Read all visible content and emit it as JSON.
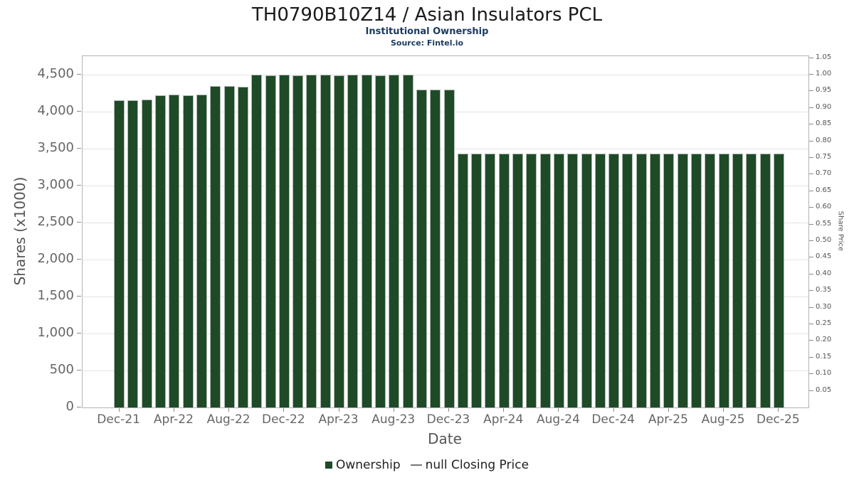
{
  "header": {
    "title": "TH0790B10Z14 / Asian Insulators PCL",
    "subtitle": "Institutional Ownership",
    "source": "Source: Fintel.io"
  },
  "chart_data": {
    "type": "bar",
    "title": "TH0790B10Z14 / Asian Insulators PCL",
    "subtitle": "Institutional Ownership",
    "source": "Source: Fintel.io",
    "xlabel": "Date",
    "ylabel_left": "Shares (x1000)",
    "ylabel_right": "Share Price",
    "bar_color": "#1f4a28",
    "grid": true,
    "legend_position": "bottom-center",
    "ylim_left": [
      0,
      4750
    ],
    "ylim_right": [
      0,
      1.0556
    ],
    "x_tick_step": 4,
    "x_tick_labels": [
      "Dec-21",
      "Apr-22",
      "Aug-22",
      "Dec-22",
      "Apr-23",
      "Aug-23",
      "Dec-23",
      "Apr-24",
      "Aug-24",
      "Dec-24",
      "Apr-25",
      "Aug-25",
      "Dec-25"
    ],
    "left_ticks": [
      {
        "value": 0,
        "label": "0"
      },
      {
        "value": 500,
        "label": "500"
      },
      {
        "value": 1000,
        "label": "1,000"
      },
      {
        "value": 1500,
        "label": "1,500"
      },
      {
        "value": 2000,
        "label": "2,000"
      },
      {
        "value": 2500,
        "label": "2,500"
      },
      {
        "value": 3000,
        "label": "3,000"
      },
      {
        "value": 3500,
        "label": "3,500"
      },
      {
        "value": 4000,
        "label": "4,000"
      },
      {
        "value": 4500,
        "label": "4,500"
      }
    ],
    "right_ticks": [
      "1.05",
      "1.00",
      "0.95",
      "0.90",
      "0.85",
      "0.80",
      "0.75",
      "0.70",
      "0.65",
      "0.60",
      "0.55",
      "0.50",
      "0.45",
      "0.40",
      "0.35",
      "0.30",
      "0.25",
      "0.20",
      "0.15",
      "0.10",
      "0.05"
    ],
    "x": [
      "Dec-21",
      "Jan-22",
      "Feb-22",
      "Mar-22",
      "Apr-22",
      "May-22",
      "Jun-22",
      "Jul-22",
      "Aug-22",
      "Sep-22",
      "Oct-22",
      "Nov-22",
      "Dec-22",
      "Jan-23",
      "Feb-23",
      "Mar-23",
      "Apr-23",
      "May-23",
      "Jun-23",
      "Jul-23",
      "Aug-23",
      "Sep-23",
      "Oct-23",
      "Nov-23",
      "Dec-23",
      "Jan-24",
      "Feb-24",
      "Mar-24",
      "Apr-24",
      "May-24",
      "Jun-24",
      "Jul-24",
      "Aug-24",
      "Sep-24",
      "Oct-24",
      "Nov-24",
      "Dec-24",
      "Jan-25",
      "Feb-25",
      "Mar-25",
      "Apr-25",
      "May-25",
      "Jun-25",
      "Jul-25",
      "Aug-25",
      "Sep-25",
      "Oct-25",
      "Nov-25",
      "Dec-25"
    ],
    "series": [
      {
        "name": "Ownership",
        "values": [
          4150,
          4150,
          4160,
          4220,
          4230,
          4220,
          4230,
          4350,
          4350,
          4340,
          4500,
          4490,
          4500,
          4490,
          4500,
          4500,
          4490,
          4500,
          4500,
          4490,
          4500,
          4500,
          4300,
          4300,
          4300,
          3430,
          3430,
          3430,
          3430,
          3430,
          3430,
          3430,
          3430,
          3430,
          3430,
          3430,
          3430,
          3430,
          3430,
          3430,
          3430,
          3430,
          3430,
          3430,
          3430,
          3430,
          3430,
          3430,
          3430
        ]
      }
    ],
    "legend": [
      {
        "label": "Ownership",
        "swatch": "square",
        "color": "#1f4a28"
      },
      {
        "label": "null Closing Price",
        "swatch": "line",
        "color": "#777777"
      }
    ]
  }
}
